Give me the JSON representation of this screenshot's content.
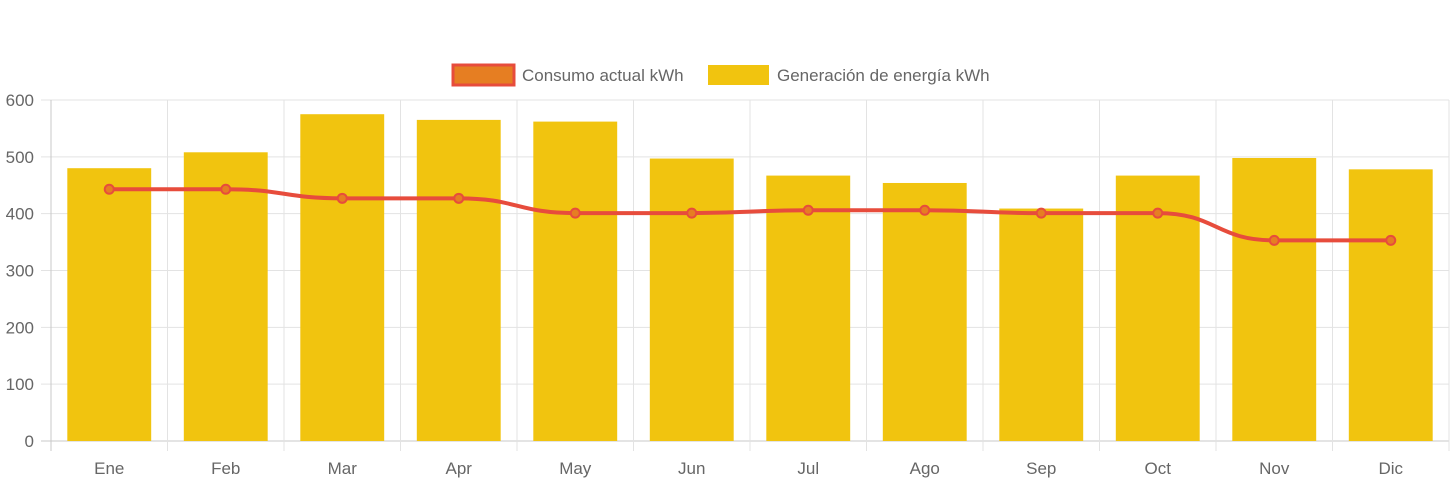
{
  "chart_data": {
    "type": "bar",
    "categories": [
      "Ene",
      "Feb",
      "Mar",
      "Apr",
      "May",
      "Jun",
      "Jul",
      "Ago",
      "Sep",
      "Oct",
      "Nov",
      "Dic"
    ],
    "ylim": [
      0,
      600
    ],
    "yticks": [
      0,
      100,
      200,
      300,
      400,
      500,
      600
    ],
    "grid": true,
    "legend_position": "top",
    "series": [
      {
        "name": "Consumo actual kWh",
        "type": "line",
        "color": "#e74c3c",
        "fill_color": "#e67e22",
        "values": [
          443,
          443,
          427,
          427,
          401,
          401,
          406,
          406,
          401,
          401,
          353,
          353
        ]
      },
      {
        "name": "Generación de energía kWh",
        "type": "bar",
        "color": "#f1c40f",
        "values": [
          480,
          508,
          575,
          565,
          562,
          497,
          467,
          454,
          409,
          467,
          498,
          478
        ]
      }
    ]
  }
}
